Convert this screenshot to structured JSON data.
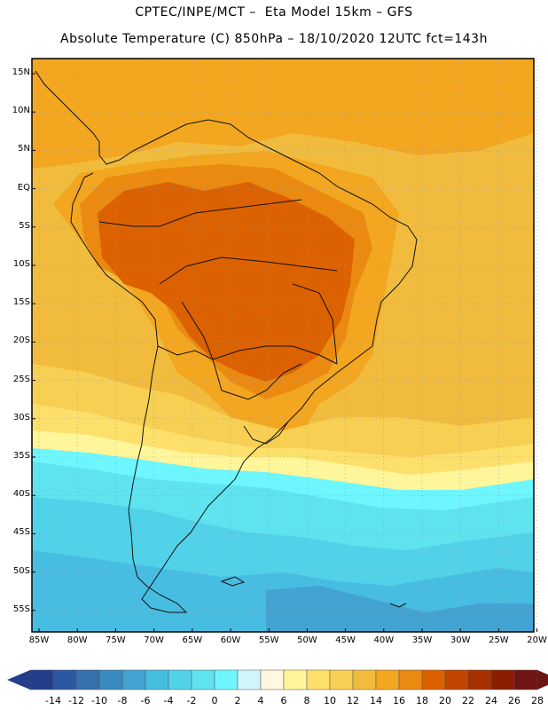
{
  "title_line1": "CPTEC/INPE/MCT –  Eta Model 15km – GFS",
  "title_line2": "Absolute Temperature (C) 850hPa – 18/10/2020 12UTC fct=143h",
  "lat_labels": [
    "15N",
    "10N",
    "5N",
    "EQ",
    "5S",
    "10S",
    "15S",
    "20S",
    "25S",
    "30S",
    "35S",
    "40S",
    "45S",
    "50S",
    "55S"
  ],
  "lon_labels": [
    "85W",
    "80W",
    "75W",
    "70W",
    "65W",
    "60W",
    "55W",
    "50W",
    "45W",
    "40W",
    "35W",
    "30W",
    "25W",
    "20W"
  ],
  "colorbar": {
    "values": [
      "-14",
      "-12",
      "-10",
      "-8",
      "-6",
      "-4",
      "-2",
      "0",
      "2",
      "4",
      "6",
      "8",
      "10",
      "12",
      "14",
      "16",
      "18",
      "20",
      "22",
      "24",
      "26",
      "28"
    ],
    "colors": [
      "#233f8c",
      "#2d58a1",
      "#3471ad",
      "#3b8ac0",
      "#42a3d3",
      "#48bde2",
      "#52d2e9",
      "#5fe3ef",
      "#6ef6ff",
      "#d0f5fb",
      "#fff7df",
      "#fff59a",
      "#fde06c",
      "#f7cf52",
      "#f1bc3d",
      "#f3a620",
      "#ea8a10",
      "#dc6100",
      "#c14400",
      "#a73000",
      "#8c1e00",
      "#701515"
    ],
    "low_color": "#233f8c",
    "high_color": "#701515"
  },
  "field_colors": {
    "t14": "#f1bc3d",
    "t16": "#f3a620",
    "t18": "#ea8a10",
    "t20": "#dc6100",
    "t12": "#f7cf52",
    "t10": "#fde06c",
    "t8": "#fff59a",
    "t6": "#fff7df",
    "t4": "#d0f5fb",
    "t2": "#6ef6ff",
    "t0": "#5fe3ef",
    "tm2": "#52d2e9",
    "tm4": "#48bde2",
    "tm6": "#42a3d3"
  }
}
